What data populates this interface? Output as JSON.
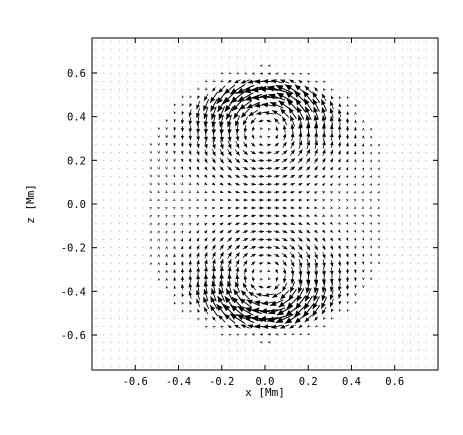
{
  "chart_data": {
    "type": "quiver",
    "xlabel": "x [Mm]",
    "ylabel": "z [Mm]",
    "xlim": [
      -0.8,
      0.8
    ],
    "ylim": [
      -0.76,
      0.76
    ],
    "xticks": [
      -0.6,
      -0.4,
      -0.2,
      0.0,
      0.2,
      0.4,
      0.6
    ],
    "yticks": [
      -0.6,
      -0.4,
      -0.2,
      0.0,
      0.2,
      0.4,
      0.6
    ],
    "xtick_labels": [
      "-0.6",
      "-0.4",
      "-0.2",
      "0.0",
      "0.2",
      "0.4",
      "0.6"
    ],
    "ytick_labels": [
      "-0.6",
      "-0.4",
      "-0.2",
      "0.0",
      "0.2",
      "0.4",
      "0.6"
    ],
    "grid": false,
    "field_description": {
      "vortex_centers": [
        [
          0.0,
          0.33
        ],
        [
          0.0,
          -0.33
        ]
      ],
      "circulation_region_radius": 0.53,
      "central_flow_direction": "-x",
      "max_speed_location": "outer rim near z = ±0.5"
    },
    "colors": {
      "axes": "#000000",
      "vectors": "#000000",
      "background": "#ffffff"
    }
  }
}
